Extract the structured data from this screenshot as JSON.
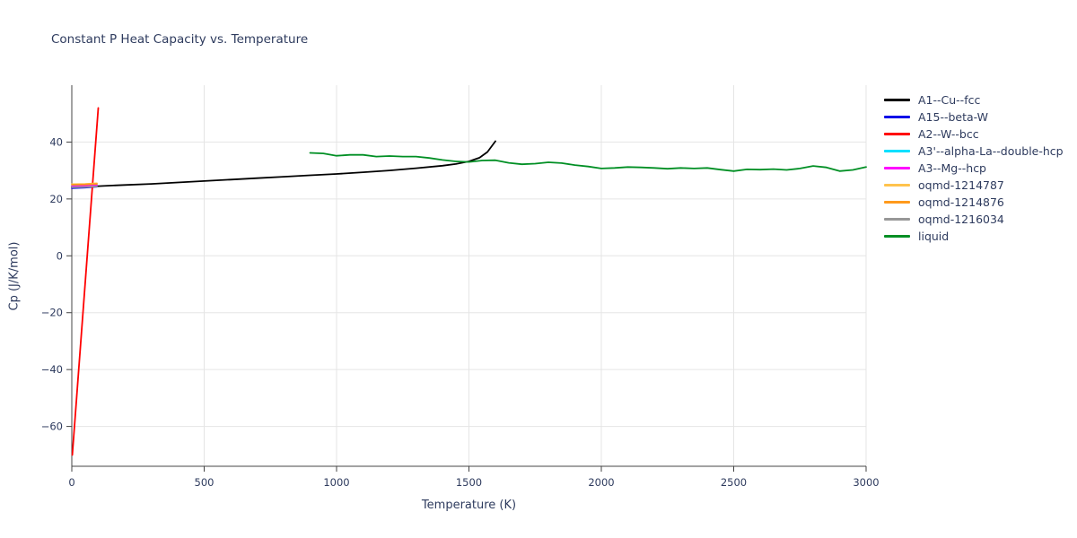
{
  "chart_data": {
    "type": "line",
    "title": "Constant P Heat Capacity vs. Temperature",
    "xlabel": "Temperature (K)",
    "ylabel": "Cp (J/K/mol)",
    "xlim": [
      0,
      3000
    ],
    "ylim": [
      -74,
      60
    ],
    "xticks": [
      0,
      500,
      1000,
      1500,
      2000,
      2500,
      3000
    ],
    "yticks": [
      -60,
      -40,
      -20,
      0,
      20,
      40
    ],
    "grid": true,
    "legend_position": "right-outside",
    "colors": {
      "grid": "#e5e5e5",
      "axis": "#444444",
      "text": "#2e3b5e",
      "background": "#ffffff"
    },
    "series": [
      {
        "name": "A1--Cu--fcc",
        "color": "#000000",
        "points": [
          [
            0,
            24.2
          ],
          [
            100,
            24.5
          ],
          [
            200,
            24.9
          ],
          [
            300,
            25.3
          ],
          [
            400,
            25.8
          ],
          [
            500,
            26.3
          ],
          [
            600,
            26.8
          ],
          [
            700,
            27.3
          ],
          [
            800,
            27.8
          ],
          [
            900,
            28.3
          ],
          [
            1000,
            28.8
          ],
          [
            1100,
            29.4
          ],
          [
            1200,
            30.0
          ],
          [
            1300,
            30.8
          ],
          [
            1400,
            31.7
          ],
          [
            1450,
            32.3
          ],
          [
            1500,
            33.2
          ],
          [
            1540,
            34.5
          ],
          [
            1570,
            36.5
          ],
          [
            1600,
            40.3
          ]
        ]
      },
      {
        "name": "A15--beta-W",
        "color": "#0b0be8",
        "points": [
          [
            0,
            23.8
          ],
          [
            50,
            24.0
          ],
          [
            95,
            24.3
          ]
        ]
      },
      {
        "name": "A2--W--bcc",
        "color": "#ff0000",
        "points": [
          [
            2,
            -70.0
          ],
          [
            100,
            52.0
          ]
        ]
      },
      {
        "name": "A3'--alpha-La--double-hcp",
        "color": "#00e0ff",
        "points": [
          [
            0,
            24.6
          ],
          [
            50,
            24.7
          ],
          [
            95,
            24.9
          ]
        ]
      },
      {
        "name": "A3--Mg--hcp",
        "color": "#ff00ff",
        "points": [
          [
            0,
            24.4
          ],
          [
            50,
            24.6
          ],
          [
            95,
            24.8
          ]
        ]
      },
      {
        "name": "oqmd-1214787",
        "color": "#ffc34d",
        "points": [
          [
            0,
            25.2
          ],
          [
            50,
            25.3
          ],
          [
            95,
            25.5
          ]
        ]
      },
      {
        "name": "oqmd-1214876",
        "color": "#ff9a1c",
        "points": [
          [
            0,
            25.0
          ],
          [
            50,
            25.1
          ],
          [
            95,
            25.3
          ]
        ]
      },
      {
        "name": "oqmd-1216034",
        "color": "#979797",
        "points": [
          [
            0,
            24.1
          ],
          [
            50,
            24.2
          ],
          [
            95,
            24.4
          ]
        ]
      },
      {
        "name": "liquid",
        "color": "#008f24",
        "points": [
          [
            900,
            36.2
          ],
          [
            950,
            36.0
          ],
          [
            1000,
            35.2
          ],
          [
            1050,
            35.5
          ],
          [
            1100,
            35.5
          ],
          [
            1150,
            34.9
          ],
          [
            1200,
            35.1
          ],
          [
            1250,
            34.9
          ],
          [
            1300,
            34.9
          ],
          [
            1350,
            34.4
          ],
          [
            1400,
            33.7
          ],
          [
            1450,
            33.2
          ],
          [
            1500,
            33.0
          ],
          [
            1550,
            33.5
          ],
          [
            1600,
            33.6
          ],
          [
            1650,
            32.7
          ],
          [
            1700,
            32.2
          ],
          [
            1750,
            32.4
          ],
          [
            1800,
            32.9
          ],
          [
            1850,
            32.6
          ],
          [
            1900,
            31.9
          ],
          [
            1950,
            31.4
          ],
          [
            2000,
            30.7
          ],
          [
            2050,
            30.9
          ],
          [
            2100,
            31.2
          ],
          [
            2150,
            31.1
          ],
          [
            2200,
            30.9
          ],
          [
            2250,
            30.6
          ],
          [
            2300,
            30.9
          ],
          [
            2350,
            30.7
          ],
          [
            2400,
            30.9
          ],
          [
            2450,
            30.3
          ],
          [
            2500,
            29.8
          ],
          [
            2550,
            30.4
          ],
          [
            2600,
            30.3
          ],
          [
            2650,
            30.5
          ],
          [
            2700,
            30.2
          ],
          [
            2750,
            30.7
          ],
          [
            2800,
            31.6
          ],
          [
            2850,
            31.1
          ],
          [
            2900,
            29.8
          ],
          [
            2950,
            30.2
          ],
          [
            3000,
            31.2
          ]
        ]
      }
    ]
  }
}
